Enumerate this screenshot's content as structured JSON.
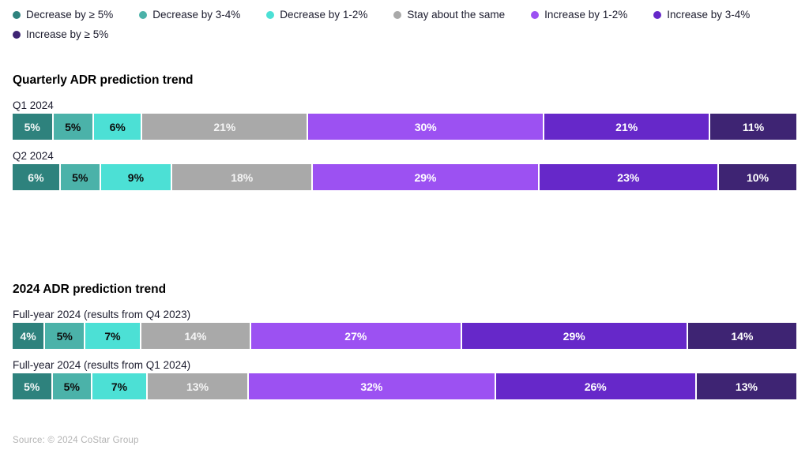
{
  "legend": {
    "items": [
      {
        "label": "Decrease by ≥ 5%",
        "color": "#2E827D",
        "text_color": "#f2f7f6"
      },
      {
        "label": "Decrease by 3-4%",
        "color": "#4BB2A9",
        "text_color": "#0d0d0d"
      },
      {
        "label": "Decrease by 1-2%",
        "color": "#4CE0D5",
        "text_color": "#0d0d0d"
      },
      {
        "label": "Stay about the same",
        "color": "#A9A9A9",
        "text_color": "#f5f5f5"
      },
      {
        "label": "Increase by 1-2%",
        "color": "#9C51F2",
        "text_color": "#ffffff"
      },
      {
        "label": "Increase by 3-4%",
        "color": "#6628C9",
        "text_color": "#ffffff"
      },
      {
        "label": "Increase by ≥ 5%",
        "color": "#3E2473",
        "text_color": "#ffffff"
      }
    ]
  },
  "source": "Source: © 2024 CoStar Group",
  "chart_data": [
    {
      "type": "bar",
      "orientation": "horizontal",
      "stacked": true,
      "normalized_100": true,
      "unit": "%",
      "title": "Quarterly ADR prediction trend",
      "categories": [
        "Q1 2024",
        "Q2 2024"
      ],
      "series": [
        {
          "name": "Decrease by ≥ 5%",
          "values": [
            5,
            6
          ]
        },
        {
          "name": "Decrease by 3-4%",
          "values": [
            5,
            5
          ]
        },
        {
          "name": "Decrease by 1-2%",
          "values": [
            6,
            9
          ]
        },
        {
          "name": "Stay about the same",
          "values": [
            21,
            18
          ]
        },
        {
          "name": "Increase by 1-2%",
          "values": [
            30,
            29
          ]
        },
        {
          "name": "Increase by 3-4%",
          "values": [
            21,
            23
          ]
        },
        {
          "name": "Increase by ≥ 5%",
          "values": [
            11,
            10
          ]
        }
      ],
      "legend_position": "top"
    },
    {
      "type": "bar",
      "orientation": "horizontal",
      "stacked": true,
      "normalized_100": true,
      "unit": "%",
      "title": "2024 ADR prediction trend",
      "categories": [
        "Full-year 2024 (results from Q4 2023)",
        "Full-year 2024 (results from Q1 2024)"
      ],
      "series": [
        {
          "name": "Decrease by ≥ 5%",
          "values": [
            4,
            5
          ]
        },
        {
          "name": "Decrease by 3-4%",
          "values": [
            5,
            5
          ]
        },
        {
          "name": "Decrease by 1-2%",
          "values": [
            7,
            7
          ]
        },
        {
          "name": "Stay about the same",
          "values": [
            14,
            13
          ]
        },
        {
          "name": "Increase by 1-2%",
          "values": [
            27,
            32
          ]
        },
        {
          "name": "Increase by 3-4%",
          "values": [
            29,
            26
          ]
        },
        {
          "name": "Increase by ≥ 5%",
          "values": [
            14,
            13
          ]
        }
      ],
      "legend_position": "top"
    }
  ]
}
